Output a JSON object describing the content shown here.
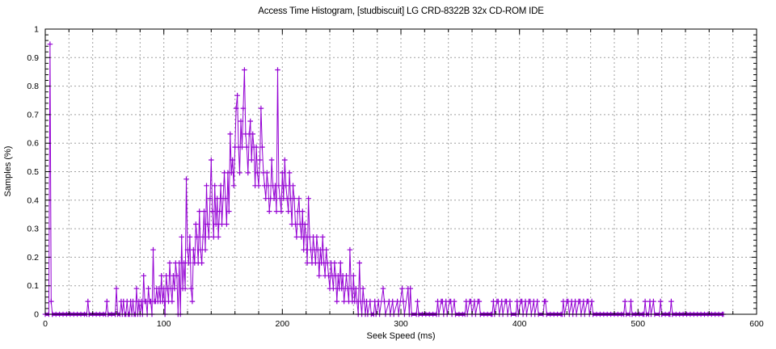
{
  "colors": {
    "series": "#9400d3",
    "grid": "#a0a0a0",
    "axis": "#000000",
    "background": "#ffffff",
    "text": "#000000"
  },
  "chart_data": {
    "type": "line",
    "title": "Access Time Histogram, [studbiscuit] LG CRD-8322B 32x CD-ROM IDE",
    "xlabel": "Seek Speed (ms)",
    "ylabel": "Samples (%)",
    "xlim": [
      0,
      600
    ],
    "ylim": [
      0,
      1
    ],
    "xticks": [
      0,
      100,
      200,
      300,
      400,
      500,
      600
    ],
    "yticks": [
      0,
      0.1,
      0.2,
      0.3,
      0.4,
      0.5,
      0.6,
      0.7,
      0.8,
      0.9,
      1
    ],
    "x_minor_step": 20,
    "y_minor_step": 0.02,
    "grid": true,
    "legend": "none",
    "marker": "plus",
    "points": [
      [
        0,
        0
      ],
      [
        3,
        0
      ],
      [
        4,
        0.947
      ],
      [
        5,
        0.045
      ],
      [
        6,
        0
      ],
      [
        35,
        0
      ],
      [
        36,
        0.045
      ],
      [
        37,
        0
      ],
      [
        51,
        0
      ],
      [
        52,
        0.045
      ],
      [
        53,
        0
      ],
      [
        59,
        0
      ],
      [
        60,
        0.09
      ],
      [
        61,
        0
      ],
      [
        63,
        0
      ],
      [
        64,
        0.045
      ],
      [
        65,
        0
      ],
      [
        66,
        0.045
      ],
      [
        67,
        0
      ],
      [
        68,
        0
      ],
      [
        69,
        0.045
      ],
      [
        70,
        0
      ],
      [
        71,
        0
      ],
      [
        72,
        0.045
      ],
      [
        73,
        0
      ],
      [
        74,
        0.045
      ],
      [
        75,
        0
      ],
      [
        76,
        0
      ],
      [
        77,
        0.09
      ],
      [
        78,
        0
      ],
      [
        79,
        0.045
      ],
      [
        80,
        0
      ],
      [
        81,
        0.045
      ],
      [
        82,
        0
      ],
      [
        83,
        0.135
      ],
      [
        84,
        0.045
      ],
      [
        85,
        0.045
      ],
      [
        86,
        0
      ],
      [
        87,
        0.09
      ],
      [
        88,
        0.045
      ],
      [
        89,
        0.045
      ],
      [
        90,
        0
      ],
      [
        91,
        0.226
      ],
      [
        92,
        0.045
      ],
      [
        93,
        0.045
      ],
      [
        94,
        0.09
      ],
      [
        95,
        0.045
      ],
      [
        96,
        0.09
      ],
      [
        97,
        0.045
      ],
      [
        98,
        0.135
      ],
      [
        99,
        0.045
      ],
      [
        100,
        0.09
      ],
      [
        101,
        0
      ],
      [
        102,
        0.135
      ],
      [
        103,
        0.09
      ],
      [
        104,
        0.045
      ],
      [
        105,
        0.18
      ],
      [
        106,
        0.09
      ],
      [
        107,
        0.045
      ],
      [
        108,
        0.135
      ],
      [
        109,
        0.09
      ],
      [
        110,
        0.18
      ],
      [
        111,
        0.135
      ],
      [
        112,
        0
      ],
      [
        113,
        0.18
      ],
      [
        114,
        0
      ],
      [
        115,
        0.271
      ],
      [
        116,
        0.09
      ],
      [
        117,
        0.18
      ],
      [
        118,
        0.09
      ],
      [
        119,
        0.474
      ],
      [
        120,
        0.226
      ],
      [
        121,
        0.18
      ],
      [
        122,
        0.271
      ],
      [
        123,
        0.09
      ],
      [
        124,
        0.045
      ],
      [
        125,
        0.226
      ],
      [
        126,
        0.18
      ],
      [
        127,
        0.316
      ],
      [
        128,
        0.271
      ],
      [
        129,
        0.18
      ],
      [
        130,
        0.361
      ],
      [
        131,
        0.226
      ],
      [
        132,
        0.18
      ],
      [
        133,
        0.271
      ],
      [
        134,
        0.361
      ],
      [
        135,
        0.226
      ],
      [
        136,
        0.451
      ],
      [
        137,
        0.316
      ],
      [
        138,
        0.271
      ],
      [
        139,
        0.406
      ],
      [
        140,
        0.541
      ],
      [
        141,
        0.361
      ],
      [
        142,
        0.271
      ],
      [
        143,
        0.451
      ],
      [
        144,
        0.316
      ],
      [
        145,
        0.406
      ],
      [
        146,
        0.271
      ],
      [
        147,
        0.361
      ],
      [
        148,
        0.451
      ],
      [
        149,
        0.316
      ],
      [
        150,
        0.406
      ],
      [
        151,
        0.496
      ],
      [
        152,
        0.406
      ],
      [
        153,
        0.316
      ],
      [
        154,
        0.496
      ],
      [
        155,
        0.361
      ],
      [
        156,
        0.632
      ],
      [
        157,
        0.496
      ],
      [
        158,
        0.541
      ],
      [
        159,
        0.451
      ],
      [
        160,
        0.586
      ],
      [
        161,
        0.722
      ],
      [
        162,
        0.767
      ],
      [
        163,
        0.586
      ],
      [
        164,
        0.496
      ],
      [
        165,
        0.677
      ],
      [
        166,
        0.586
      ],
      [
        167,
        0.722
      ],
      [
        168,
        0.857
      ],
      [
        169,
        0.632
      ],
      [
        170,
        0.586
      ],
      [
        171,
        0.496
      ],
      [
        172,
        0.632
      ],
      [
        173,
        0.677
      ],
      [
        174,
        0.541
      ],
      [
        175,
        0.632
      ],
      [
        176,
        0.586
      ],
      [
        177,
        0.451
      ],
      [
        178,
        0.586
      ],
      [
        179,
        0.496
      ],
      [
        180,
        0.451
      ],
      [
        181,
        0.541
      ],
      [
        182,
        0.722
      ],
      [
        183,
        0.586
      ],
      [
        184,
        0.496
      ],
      [
        185,
        0.451
      ],
      [
        186,
        0.406
      ],
      [
        187,
        0.496
      ],
      [
        188,
        0.451
      ],
      [
        189,
        0.361
      ],
      [
        190,
        0.406
      ],
      [
        191,
        0.541
      ],
      [
        192,
        0.451
      ],
      [
        193,
        0.406
      ],
      [
        194,
        0.451
      ],
      [
        195,
        0.361
      ],
      [
        196,
        0.857
      ],
      [
        197,
        0.451
      ],
      [
        198,
        0.406
      ],
      [
        199,
        0.361
      ],
      [
        200,
        0.496
      ],
      [
        201,
        0.406
      ],
      [
        202,
        0.541
      ],
      [
        203,
        0.451
      ],
      [
        204,
        0.406
      ],
      [
        205,
        0.361
      ],
      [
        206,
        0.496
      ],
      [
        207,
        0.406
      ],
      [
        208,
        0.316
      ],
      [
        209,
        0.451
      ],
      [
        210,
        0.406
      ],
      [
        211,
        0.316
      ],
      [
        212,
        0.271
      ],
      [
        213,
        0.361
      ],
      [
        214,
        0.406
      ],
      [
        215,
        0.316
      ],
      [
        216,
        0.271
      ],
      [
        217,
        0.361
      ],
      [
        218,
        0.226
      ],
      [
        219,
        0.316
      ],
      [
        220,
        0.271
      ],
      [
        221,
        0.18
      ],
      [
        222,
        0.406
      ],
      [
        223,
        0.271
      ],
      [
        224,
        0.226
      ],
      [
        225,
        0.18
      ],
      [
        226,
        0.271
      ],
      [
        227,
        0.226
      ],
      [
        228,
        0.18
      ],
      [
        229,
        0.271
      ],
      [
        230,
        0.226
      ],
      [
        231,
        0.135
      ],
      [
        232,
        0.226
      ],
      [
        233,
        0.18
      ],
      [
        234,
        0.271
      ],
      [
        235,
        0.18
      ],
      [
        236,
        0.135
      ],
      [
        237,
        0.226
      ],
      [
        238,
        0.18
      ],
      [
        239,
        0.135
      ],
      [
        240,
        0.09
      ],
      [
        241,
        0.18
      ],
      [
        242,
        0.135
      ],
      [
        243,
        0.09
      ],
      [
        244,
        0.18
      ],
      [
        245,
        0.135
      ],
      [
        246,
        0.045
      ],
      [
        247,
        0.135
      ],
      [
        248,
        0.09
      ],
      [
        249,
        0.18
      ],
      [
        250,
        0.09
      ],
      [
        251,
        0.135
      ],
      [
        252,
        0.045
      ],
      [
        253,
        0.09
      ],
      [
        254,
        0.135
      ],
      [
        255,
        0.09
      ],
      [
        256,
        0.045
      ],
      [
        257,
        0.226
      ],
      [
        258,
        0.09
      ],
      [
        259,
        0.045
      ],
      [
        260,
        0.135
      ],
      [
        261,
        0.045
      ],
      [
        262,
        0.09
      ],
      [
        263,
        0.045
      ],
      [
        264,
        0
      ],
      [
        265,
        0.18
      ],
      [
        266,
        0.045
      ],
      [
        267,
        0
      ],
      [
        268,
        0.09
      ],
      [
        269,
        0.045
      ],
      [
        270,
        0
      ],
      [
        271,
        0.045
      ],
      [
        272,
        0
      ],
      [
        274,
        0.045
      ],
      [
        275,
        0
      ],
      [
        277,
        0
      ],
      [
        278,
        0.045
      ],
      [
        279,
        0
      ],
      [
        281,
        0.045
      ],
      [
        282,
        0
      ],
      [
        285,
        0.09
      ],
      [
        286,
        0.045
      ],
      [
        287,
        0
      ],
      [
        290,
        0.045
      ],
      [
        291,
        0
      ],
      [
        293,
        0.045
      ],
      [
        294,
        0
      ],
      [
        297,
        0.045
      ],
      [
        298,
        0
      ],
      [
        301,
        0.09
      ],
      [
        302,
        0.045
      ],
      [
        303,
        0
      ],
      [
        306,
        0.09
      ],
      [
        307,
        0
      ],
      [
        308,
        0.09
      ],
      [
        309,
        0
      ],
      [
        313,
        0
      ],
      [
        314,
        0.045
      ],
      [
        315,
        0
      ],
      [
        330,
        0
      ],
      [
        331,
        0.045
      ],
      [
        332,
        0
      ],
      [
        334,
        0.045
      ],
      [
        335,
        0.045
      ],
      [
        336,
        0
      ],
      [
        338,
        0.045
      ],
      [
        339,
        0
      ],
      [
        341,
        0.045
      ],
      [
        342,
        0.045
      ],
      [
        343,
        0
      ],
      [
        345,
        0.045
      ],
      [
        346,
        0
      ],
      [
        354,
        0
      ],
      [
        355,
        0.045
      ],
      [
        356,
        0
      ],
      [
        358,
        0.045
      ],
      [
        359,
        0.045
      ],
      [
        360,
        0
      ],
      [
        362,
        0.045
      ],
      [
        363,
        0
      ],
      [
        365,
        0.045
      ],
      [
        366,
        0.045
      ],
      [
        367,
        0
      ],
      [
        377,
        0
      ],
      [
        378,
        0.045
      ],
      [
        379,
        0
      ],
      [
        381,
        0.045
      ],
      [
        382,
        0.045
      ],
      [
        383,
        0
      ],
      [
        385,
        0.045
      ],
      [
        386,
        0
      ],
      [
        388,
        0.045
      ],
      [
        389,
        0.045
      ],
      [
        390,
        0
      ],
      [
        392,
        0.045
      ],
      [
        393,
        0
      ],
      [
        397,
        0
      ],
      [
        398,
        0.045
      ],
      [
        399,
        0
      ],
      [
        401,
        0.045
      ],
      [
        402,
        0.045
      ],
      [
        403,
        0
      ],
      [
        405,
        0.045
      ],
      [
        406,
        0
      ],
      [
        408,
        0.045
      ],
      [
        409,
        0.045
      ],
      [
        410,
        0
      ],
      [
        412,
        0.045
      ],
      [
        413,
        0
      ],
      [
        415,
        0.045
      ],
      [
        416,
        0
      ],
      [
        420,
        0
      ],
      [
        421,
        0.045
      ],
      [
        422,
        0.045
      ],
      [
        423,
        0
      ],
      [
        436,
        0
      ],
      [
        437,
        0.045
      ],
      [
        438,
        0
      ],
      [
        440,
        0.045
      ],
      [
        441,
        0.045
      ],
      [
        442,
        0
      ],
      [
        444,
        0.045
      ],
      [
        445,
        0
      ],
      [
        447,
        0.045
      ],
      [
        448,
        0
      ],
      [
        450,
        0.045
      ],
      [
        451,
        0.045
      ],
      [
        452,
        0
      ],
      [
        454,
        0.045
      ],
      [
        455,
        0
      ],
      [
        457,
        0.045
      ],
      [
        458,
        0.045
      ],
      [
        459,
        0
      ],
      [
        461,
        0.045
      ],
      [
        462,
        0
      ],
      [
        488,
        0
      ],
      [
        489,
        0.045
      ],
      [
        490,
        0
      ],
      [
        493,
        0
      ],
      [
        494,
        0.045
      ],
      [
        495,
        0
      ],
      [
        505,
        0
      ],
      [
        506,
        0.045
      ],
      [
        507,
        0
      ],
      [
        509,
        0
      ],
      [
        510,
        0.045
      ],
      [
        511,
        0
      ],
      [
        513,
        0.045
      ],
      [
        514,
        0
      ],
      [
        518,
        0
      ],
      [
        519,
        0.045
      ],
      [
        520,
        0
      ],
      [
        527,
        0
      ],
      [
        528,
        0.045
      ],
      [
        529,
        0
      ],
      [
        572,
        0
      ]
    ]
  }
}
